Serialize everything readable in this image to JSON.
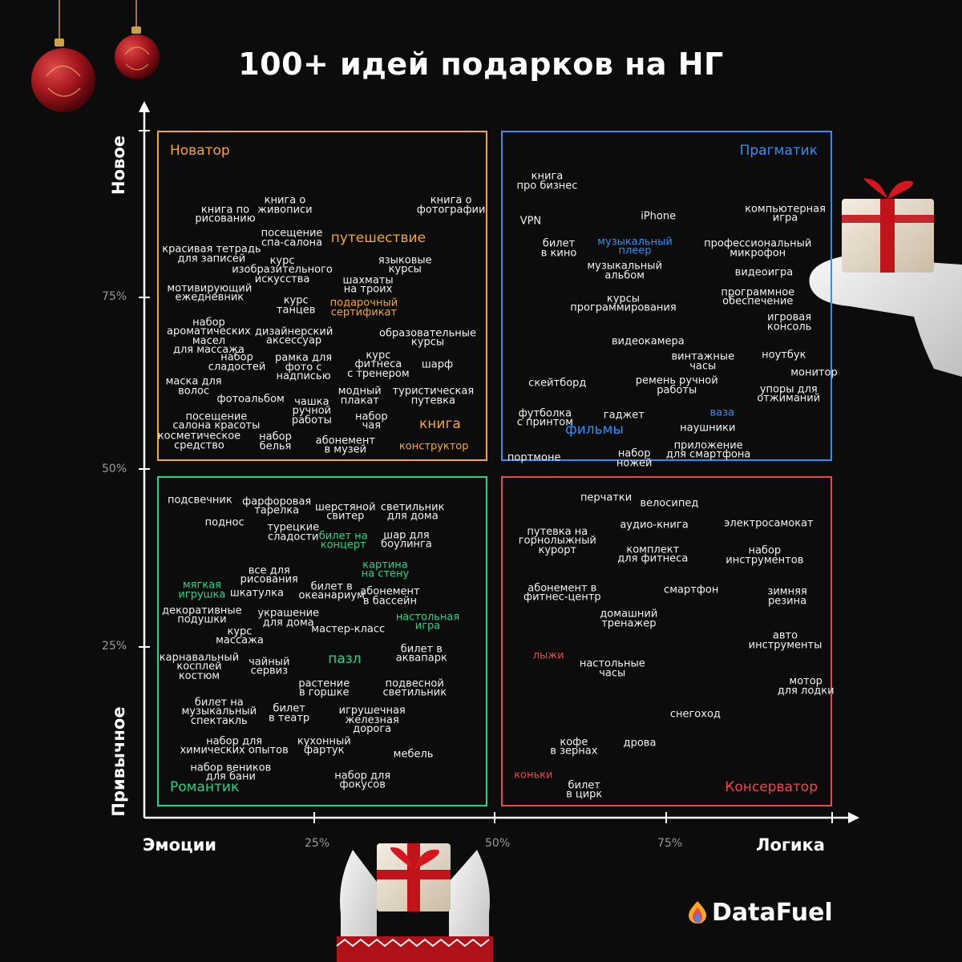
{
  "title": "100+ идей подарков на НГ",
  "brand": "DataFuel",
  "colors": {
    "innovator": "#f3a925",
    "pragmatist": "#2f8ff5",
    "romantic": "#1ed788",
    "conservative": "#f0454a",
    "text": "#f2f2f2",
    "axis": "#ffffff",
    "tick_label": "#9a9a9a",
    "background": "#0c0c0c"
  },
  "axes": {
    "x_left_label": "Эмоции",
    "x_right_label": "Логика",
    "y_top_label": "Новое",
    "y_bottom_label": "Привычное",
    "x_ticks": [
      "25%",
      "50%",
      "75%"
    ],
    "y_ticks": [
      "75%",
      "50%",
      "25%"
    ]
  },
  "icons": [
    "ornament-icon",
    "gift-box-icon",
    "datafuel-logo-icon"
  ],
  "chart_data": {
    "type": "scatter",
    "title": "100+ идей подарков на НГ",
    "xlabel_left": "Эмоции",
    "xlabel_right": "Логика",
    "ylabel_bottom": "Привычное",
    "ylabel_top": "Новое",
    "xlim": [
      0,
      100
    ],
    "ylim": [
      0,
      100
    ],
    "x_ticks": [
      25,
      50,
      75
    ],
    "y_ticks": [
      25,
      50,
      75
    ],
    "quadrants": [
      {
        "name": "Новатор",
        "color": "#f3a925",
        "position": "top-left"
      },
      {
        "name": "Прагматик",
        "color": "#2f8ff5",
        "position": "top-right"
      },
      {
        "name": "Романтик",
        "color": "#1ed788",
        "position": "bottom-left"
      },
      {
        "name": "Консерватор",
        "color": "#f0454a",
        "position": "bottom-right"
      }
    ],
    "points": [
      {
        "label": "книга о\nживописи",
        "x": 20.5,
        "y": 87.2
      },
      {
        "label": "книга о\nфотографии",
        "x": 44.7,
        "y": 87.2
      },
      {
        "label": "книга по\nрисованию",
        "x": 11.8,
        "y": 85.9
      },
      {
        "label": "посещение\nспа-салона",
        "x": 21.5,
        "y": 82.5
      },
      {
        "label": "путешествие",
        "x": 34.1,
        "y": 82.5,
        "color": "#f3a925",
        "big": true
      },
      {
        "label": "красивая тетрадь\nдля записей",
        "x": 9.8,
        "y": 80.2
      },
      {
        "label": "курс\nизобразительного\nискусства",
        "x": 20.1,
        "y": 78.0
      },
      {
        "label": "языковые\nкурсы",
        "x": 38.0,
        "y": 78.7
      },
      {
        "label": "шахматы\nна троих",
        "x": 32.6,
        "y": 75.8
      },
      {
        "label": "мотивирующий\nежедневник",
        "x": 9.5,
        "y": 74.7
      },
      {
        "label": "курс\nтанцев",
        "x": 22.1,
        "y": 72.9
      },
      {
        "label": "подарочный\nсертификат",
        "x": 32.0,
        "y": 72.6,
        "color": "#f3a925"
      },
      {
        "label": "набор\nароматических\nмасел\nдля массажа",
        "x": 9.4,
        "y": 68.5
      },
      {
        "label": "дизайнерский\nаксессуар",
        "x": 21.8,
        "y": 68.5
      },
      {
        "label": "образовательные\nкурсы",
        "x": 41.3,
        "y": 68.3
      },
      {
        "label": "набор\nсладостей",
        "x": 13.5,
        "y": 64.8
      },
      {
        "label": "рамка для\nфото с\nнадписью",
        "x": 23.2,
        "y": 64.1
      },
      {
        "label": "курс\nфитнеса\nс тренером",
        "x": 34.1,
        "y": 64.5
      },
      {
        "label": "шарф",
        "x": 42.7,
        "y": 64.5
      },
      {
        "label": "маска для\nволос",
        "x": 7.2,
        "y": 61.4
      },
      {
        "label": "фотоальбом",
        "x": 15.5,
        "y": 59.6
      },
      {
        "label": "модный\nплакат",
        "x": 31.4,
        "y": 60.0
      },
      {
        "label": "туристическая\nпутевка",
        "x": 42.1,
        "y": 60.0
      },
      {
        "label": "чашка\nручной\nработы",
        "x": 24.4,
        "y": 57.9
      },
      {
        "label": "посещение\nсалона красоты",
        "x": 10.5,
        "y": 56.4
      },
      {
        "label": "набор\nчая",
        "x": 33.1,
        "y": 56.4
      },
      {
        "label": "книга",
        "x": 43.1,
        "y": 56.1,
        "color": "#f3a925",
        "big": true
      },
      {
        "label": "косметическое\nсредство",
        "x": 8.0,
        "y": 53.6
      },
      {
        "label": "набор\nбелья",
        "x": 19.1,
        "y": 53.5
      },
      {
        "label": "абонемент\nв музей",
        "x": 29.3,
        "y": 53.0
      },
      {
        "label": "конструктор",
        "x": 42.2,
        "y": 52.8,
        "color": "#f3a925"
      },
      {
        "label": "книга\nпро бизнес",
        "x": 58.7,
        "y": 90.6
      },
      {
        "label": "VPN",
        "x": 56.3,
        "y": 84.9
      },
      {
        "label": "iPhone",
        "x": 74.9,
        "y": 85.6
      },
      {
        "label": "компьютерная\nигра",
        "x": 93.4,
        "y": 86.0
      },
      {
        "label": "билет\nв кино",
        "x": 60.4,
        "y": 81.0
      },
      {
        "label": "музыкальный\nплеер",
        "x": 71.5,
        "y": 81.3,
        "color": "#2f8ff5"
      },
      {
        "label": "профессиональный\nмикрофон",
        "x": 89.4,
        "y": 81.0
      },
      {
        "label": "музыкальный\nальбом",
        "x": 70.0,
        "y": 77.8
      },
      {
        "label": "видеоигра",
        "x": 90.3,
        "y": 77.6
      },
      {
        "label": "программное\nобеспечение",
        "x": 89.4,
        "y": 74.1
      },
      {
        "label": "курсы\nпрограммирования",
        "x": 69.8,
        "y": 73.2
      },
      {
        "label": "игровая\nконсоль",
        "x": 94.0,
        "y": 70.5
      },
      {
        "label": "видеокамера",
        "x": 73.4,
        "y": 67.8
      },
      {
        "label": "винтажные\nчасы",
        "x": 81.4,
        "y": 64.9
      },
      {
        "label": "ноутбук",
        "x": 93.2,
        "y": 65.9
      },
      {
        "label": "монитор",
        "x": 97.6,
        "y": 63.4
      },
      {
        "label": "ремень ручной\nработы",
        "x": 77.6,
        "y": 61.5
      },
      {
        "label": "скейтборд",
        "x": 60.2,
        "y": 61.9
      },
      {
        "label": "упоры для\nотжиманий",
        "x": 93.9,
        "y": 60.3
      },
      {
        "label": "футболка\nс принтом",
        "x": 58.4,
        "y": 56.9
      },
      {
        "label": "гаджет",
        "x": 69.9,
        "y": 57.3
      },
      {
        "label": "ваза",
        "x": 84.2,
        "y": 57.7,
        "color": "#2f8ff5"
      },
      {
        "label": "фильмы",
        "x": 65.6,
        "y": 55.2,
        "color": "#2f8ff5",
        "big": true
      },
      {
        "label": "наушники",
        "x": 82.1,
        "y": 55.5
      },
      {
        "label": "приложение\nдля смартфона",
        "x": 82.2,
        "y": 52.3
      },
      {
        "label": "портмоне",
        "x": 56.8,
        "y": 51.3
      },
      {
        "label": "набор\nножей",
        "x": 71.4,
        "y": 51.1
      },
      {
        "label": "подсвечник",
        "x": 8.1,
        "y": 45.2
      },
      {
        "label": "фарфоровая\nтарелка",
        "x": 19.3,
        "y": 44.3
      },
      {
        "label": "шерстяной\nсвитер",
        "x": 29.3,
        "y": 43.5
      },
      {
        "label": "светильник\nдля дома",
        "x": 39.1,
        "y": 43.5
      },
      {
        "label": "поднос",
        "x": 11.7,
        "y": 42.0
      },
      {
        "label": "турецкие\nсладости",
        "x": 21.7,
        "y": 40.6
      },
      {
        "label": "билет на\nконцерт",
        "x": 29.0,
        "y": 39.4,
        "color": "#1ed788"
      },
      {
        "label": "шар для\nбоулинга",
        "x": 38.2,
        "y": 39.5
      },
      {
        "label": "картина\nна стену",
        "x": 35.1,
        "y": 35.3,
        "color": "#1ed788"
      },
      {
        "label": "все для\nрисования",
        "x": 18.2,
        "y": 34.5
      },
      {
        "label": "мягкая\nигрушка",
        "x": 8.4,
        "y": 32.4,
        "color": "#1ed788"
      },
      {
        "label": "шкатулка",
        "x": 16.4,
        "y": 32.0
      },
      {
        "label": "билет в\nокеанариум",
        "x": 27.3,
        "y": 32.2
      },
      {
        "label": "абонемент\nв бассейн",
        "x": 35.8,
        "y": 31.5
      },
      {
        "label": "декоративные\nподушки",
        "x": 8.4,
        "y": 28.8
      },
      {
        "label": "украшение\nдля дома",
        "x": 21.0,
        "y": 28.4
      },
      {
        "label": "настольная\nигра",
        "x": 41.3,
        "y": 27.9,
        "color": "#1ed788"
      },
      {
        "label": "курс\nмассажа",
        "x": 13.9,
        "y": 25.8
      },
      {
        "label": "мастер-класс",
        "x": 29.7,
        "y": 26.8
      },
      {
        "label": "пазл",
        "x": 29.2,
        "y": 22.6,
        "color": "#1ed788",
        "big": true
      },
      {
        "label": "билет в\nаквапарк",
        "x": 40.4,
        "y": 23.3
      },
      {
        "label": "карнавальный\nкосплей\nкостюм",
        "x": 8.0,
        "y": 21.5
      },
      {
        "label": "чайный\nсервиз",
        "x": 18.2,
        "y": 21.5
      },
      {
        "label": "растение\nв горшке",
        "x": 26.2,
        "y": 18.4
      },
      {
        "label": "подвесной\nсветильник",
        "x": 39.4,
        "y": 18.4
      },
      {
        "label": "билет на\nмузыкальный\nспектакль",
        "x": 10.9,
        "y": 15.1
      },
      {
        "label": "билет\nв театр",
        "x": 21.1,
        "y": 14.8
      },
      {
        "label": "игрушечная\nжелезная\nдорога",
        "x": 33.2,
        "y": 13.9
      },
      {
        "label": "набор для\nхимических опытов",
        "x": 13.1,
        "y": 10.2
      },
      {
        "label": "кухонный\nфартук",
        "x": 26.2,
        "y": 10.2
      },
      {
        "label": "мебель",
        "x": 39.2,
        "y": 9.0
      },
      {
        "label": "набор веников\nдля бани",
        "x": 12.6,
        "y": 6.4
      },
      {
        "label": "набор для\nфокусов",
        "x": 31.8,
        "y": 5.3
      },
      {
        "label": "перчатки",
        "x": 67.3,
        "y": 45.6
      },
      {
        "label": "велосипед",
        "x": 76.5,
        "y": 44.7
      },
      {
        "label": "аудио-книга",
        "x": 74.3,
        "y": 41.7
      },
      {
        "label": "электросамокат",
        "x": 91.0,
        "y": 41.9
      },
      {
        "label": "путевка на\nгорнолыжный\nкурорт",
        "x": 60.2,
        "y": 39.4
      },
      {
        "label": "комплект\nдля фитнеса",
        "x": 74.1,
        "y": 37.5
      },
      {
        "label": "набор\nинструментов",
        "x": 90.4,
        "y": 37.3
      },
      {
        "label": "абонемент в\nфитнес-центр",
        "x": 60.9,
        "y": 32.0
      },
      {
        "label": "смартфон",
        "x": 79.7,
        "y": 32.4
      },
      {
        "label": "зимняя\nрезина",
        "x": 93.7,
        "y": 31.5
      },
      {
        "label": "домашний\nтренажер",
        "x": 70.6,
        "y": 28.3
      },
      {
        "label": "авто\nинструменты",
        "x": 93.4,
        "y": 25.2
      },
      {
        "label": "лыжи",
        "x": 58.9,
        "y": 23.1,
        "color": "#f0454a"
      },
      {
        "label": "настольные\nчасы",
        "x": 68.2,
        "y": 21.2
      },
      {
        "label": "мотор\nдля лодки",
        "x": 96.4,
        "y": 18.7
      },
      {
        "label": "снегоход",
        "x": 80.3,
        "y": 14.7
      },
      {
        "label": "кофе\nв зернах",
        "x": 62.6,
        "y": 10.1
      },
      {
        "label": "дрова",
        "x": 72.2,
        "y": 10.6
      },
      {
        "label": "коньки",
        "x": 56.7,
        "y": 6.1,
        "color": "#f0454a"
      },
      {
        "label": "билет\nв цирк",
        "x": 64.1,
        "y": 3.9
      }
    ]
  }
}
